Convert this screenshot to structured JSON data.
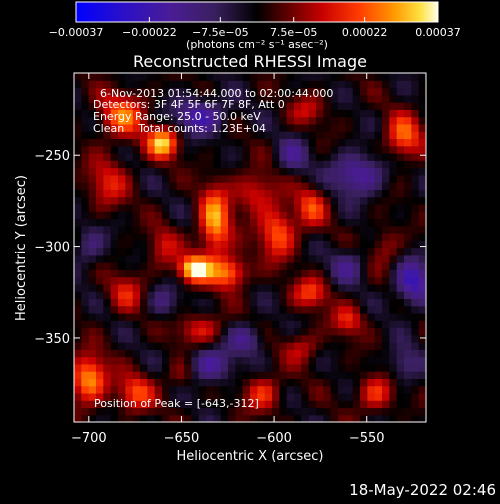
{
  "chart_data": {
    "type": "heatmap",
    "title": "Reconstructed RHESSI Image",
    "xlabel": "Heliocentric X (arcsec)",
    "ylabel": "Heliocentric Y (arcsec)",
    "xlim": [
      -708,
      -518
    ],
    "ylim": [
      -396,
      -205
    ],
    "xticks": [
      -700,
      -650,
      -600,
      -550
    ],
    "yticks": [
      -250,
      -300,
      -350
    ],
    "xtick_labels": [
      "−700",
      "−650",
      "−600",
      "−550"
    ],
    "ytick_labels": [
      "−250",
      "−300",
      "−350"
    ],
    "annotations": [
      "6-Nov-2013 01:54:44.000 to 02:00:44.000",
      "Detectors: 3F 4F 5F 6F 7F 8F, Att 0",
      "Energy Range: 25.0 - 50.0 keV",
      "Clean    Total counts: 1.23E+04"
    ],
    "peak_label": "Position of Peak = [-643,-312]",
    "peak": [
      -643,
      -312
    ],
    "colorbar": {
      "range": [
        -0.00037,
        0.00037
      ],
      "ticks": [
        -0.00037,
        -0.00022,
        -7.5e-05,
        7.5e-05,
        0.00022,
        0.00037
      ],
      "tick_labels": [
        "−0.00037",
        "−0.00022",
        "−7.5e−05",
        "7.5e−05",
        "0.00022",
        "0.00037"
      ],
      "unit": "(photons cm⁻² s⁻¹ asec⁻²)"
    },
    "sources": [
      {
        "x": -643,
        "y": -312,
        "sx": 6,
        "sy": 5,
        "amp": 1.0
      },
      {
        "x": -632,
        "y": -287,
        "sx": 6,
        "sy": 14,
        "amp": 0.78
      },
      {
        "x": -624,
        "y": -314,
        "sx": 7,
        "sy": 6,
        "amp": 0.7
      },
      {
        "x": -660,
        "y": -243,
        "sx": 6,
        "sy": 6,
        "amp": 0.85
      },
      {
        "x": -682,
        "y": -228,
        "sx": 9,
        "sy": 9,
        "amp": 0.6
      },
      {
        "x": -598,
        "y": -292,
        "sx": 7,
        "sy": 10,
        "amp": 0.62
      },
      {
        "x": -610,
        "y": -270,
        "sx": 8,
        "sy": 8,
        "amp": 0.45
      },
      {
        "x": -690,
        "y": -265,
        "sx": 8,
        "sy": 10,
        "amp": 0.4
      },
      {
        "x": -700,
        "y": -372,
        "sx": 7,
        "sy": 9,
        "amp": 0.8
      },
      {
        "x": -675,
        "y": -380,
        "sx": 7,
        "sy": 7,
        "amp": 0.55
      },
      {
        "x": -580,
        "y": -278,
        "sx": 6,
        "sy": 8,
        "amp": 0.48
      },
      {
        "x": -530,
        "y": -240,
        "sx": 7,
        "sy": 9,
        "amp": 0.6
      },
      {
        "x": -580,
        "y": -325,
        "sx": 7,
        "sy": 6,
        "amp": 0.5
      },
      {
        "x": -560,
        "y": -340,
        "sx": 6,
        "sy": 6,
        "amp": 0.45
      },
      {
        "x": -606,
        "y": -380,
        "sx": 7,
        "sy": 7,
        "amp": 0.48
      },
      {
        "x": -545,
        "y": -380,
        "sx": 7,
        "sy": 7,
        "amp": 0.5
      },
      {
        "x": -640,
        "y": -345,
        "sx": 9,
        "sy": 6,
        "amp": 0.42
      },
      {
        "x": -680,
        "y": -325,
        "sx": 7,
        "sy": 8,
        "amp": 0.38
      },
      {
        "x": -660,
        "y": -300,
        "sx": 6,
        "sy": 8,
        "amp": 0.35
      },
      {
        "x": -582,
        "y": -225,
        "sx": 7,
        "sy": 6,
        "amp": 0.32
      },
      {
        "x": -540,
        "y": -300,
        "sx": 6,
        "sy": 8,
        "amp": 0.3
      },
      {
        "x": -585,
        "y": -355,
        "sx": 7,
        "sy": 6,
        "amp": 0.35
      },
      {
        "x": -650,
        "y": -370,
        "sx": 6,
        "sy": 6,
        "amp": 0.3
      }
    ],
    "negative_sources": [
      {
        "x": -640,
        "y": -228,
        "sx": 10,
        "sy": 7,
        "amp": -0.55
      },
      {
        "x": -555,
        "y": -260,
        "sx": 10,
        "sy": 8,
        "amp": -0.55
      },
      {
        "x": -525,
        "y": -320,
        "sx": 7,
        "sy": 9,
        "amp": -0.6
      },
      {
        "x": -635,
        "y": -365,
        "sx": 9,
        "sy": 7,
        "amp": -0.5
      },
      {
        "x": -560,
        "y": -310,
        "sx": 7,
        "sy": 7,
        "amp": -0.35
      },
      {
        "x": -660,
        "y": -330,
        "sx": 6,
        "sy": 6,
        "amp": -0.3
      },
      {
        "x": -615,
        "y": -350,
        "sx": 7,
        "sy": 6,
        "amp": -0.4
      },
      {
        "x": -700,
        "y": -300,
        "sx": 6,
        "sy": 8,
        "amp": -0.3
      },
      {
        "x": -590,
        "y": -250,
        "sx": 6,
        "sy": 7,
        "amp": -0.35
      },
      {
        "x": -530,
        "y": -365,
        "sx": 6,
        "sy": 7,
        "amp": -0.35
      }
    ]
  },
  "footer": {
    "timestamp": "18-May-2022 02:46"
  }
}
